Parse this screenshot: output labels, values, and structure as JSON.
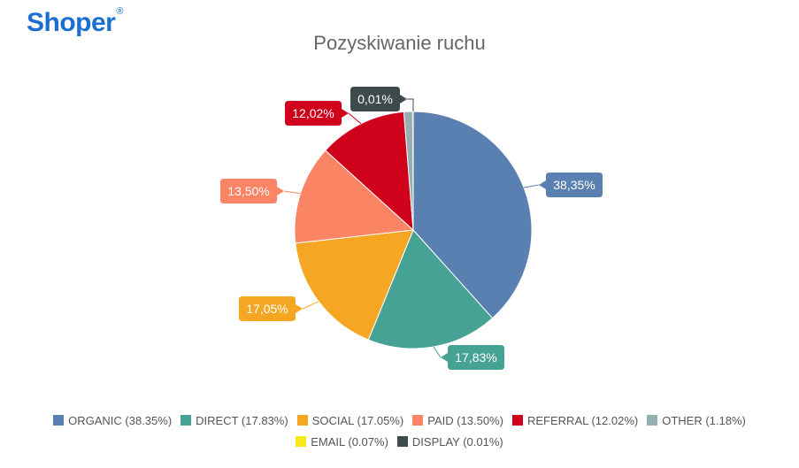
{
  "logo": {
    "text": "Shoper",
    "mark": "®"
  },
  "chart_data": {
    "type": "pie",
    "title": "Pozyskiwanie ruchu",
    "slices": [
      {
        "name": "ORGANIC",
        "value": 38.35,
        "label": "38,35%",
        "legend": "ORGANIC (38.35%)",
        "color": "#5a80b1"
      },
      {
        "name": "DIRECT",
        "value": 17.83,
        "label": "17,83%",
        "legend": "DIRECT (17.83%)",
        "color": "#46a294"
      },
      {
        "name": "SOCIAL",
        "value": 17.05,
        "label": "17,05%",
        "legend": "SOCIAL (17.05%)",
        "color": "#f5a623"
      },
      {
        "name": "PAID",
        "value": 13.5,
        "label": "13,50%",
        "legend": "PAID (13.50%)",
        "color": "#fb8464"
      },
      {
        "name": "REFERRAL",
        "value": 12.02,
        "label": "12,02%",
        "legend": "REFERRAL (12.02%)",
        "color": "#d0021b"
      },
      {
        "name": "OTHER",
        "value": 1.18,
        "label": "",
        "legend": "OTHER (1.18%)",
        "color": "#95aeb0"
      },
      {
        "name": "EMAIL",
        "value": 0.07,
        "label": "",
        "legend": "EMAIL (0.07%)",
        "color": "#f8e71c"
      },
      {
        "name": "DISPLAY",
        "value": 0.01,
        "label": "0,01%",
        "legend": "DISPLAY (0.01%)",
        "color": "#3d4b4d"
      }
    ],
    "legend_position": "bottom"
  }
}
